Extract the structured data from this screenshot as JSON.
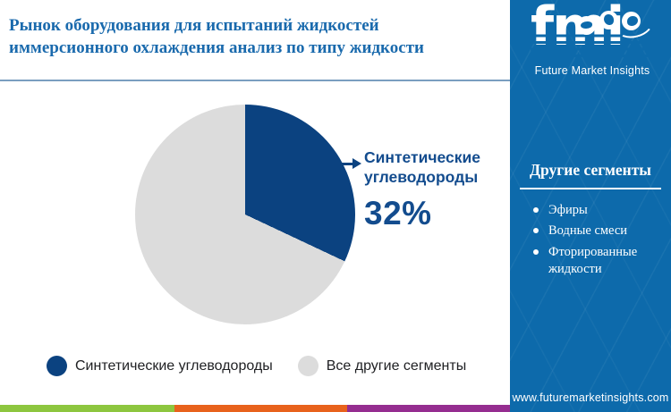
{
  "header": {
    "title": "Рынок оборудования для испытаний жидкостей иммерсионного охлаждения анализ по типу жидкости"
  },
  "logo": {
    "wordmark": "fmi",
    "tagline": "Future Market Insights"
  },
  "sidebar": {
    "other_segments": {
      "heading": "Другие сегменты",
      "items": [
        "Эфиры",
        "Водные смеси",
        "Фторированные жидкости"
      ]
    },
    "website": "www.futuremarketinsights.com"
  },
  "callout": {
    "label": "Синтетические углеводороды",
    "value": "32%"
  },
  "legend": {
    "items": [
      {
        "label": "Синтетические углеводороды",
        "color": "#0B4280"
      },
      {
        "label": "Все другие сегменты",
        "color": "#DCDCDC"
      }
    ]
  },
  "footer": {
    "stripe_colors": [
      "#8DC63F",
      "#E8621C",
      "#952D90"
    ]
  },
  "colors": {
    "sidebar_bg": "#0D6AAB",
    "title_text": "#1A6AAD",
    "accent_navy": "#0B4280",
    "slice_gray": "#DCDCDC",
    "callout_text": "#134C8E",
    "title_rule": "#7A9EC0"
  },
  "chart_data": {
    "type": "pie",
    "title": "Рынок оборудования для испытаний жидкостей иммерсионного охлаждения анализ по типу жидкости",
    "labels": [
      "Синтетические углеводороды",
      "Все другие сегменты"
    ],
    "values": [
      32,
      68
    ],
    "colors": [
      "#0B4280",
      "#DCDCDC"
    ],
    "start_angle_deg": 0,
    "direction": "clockwise",
    "annotation_label": "Синтетические углеводороды",
    "annotation_value": "32%",
    "legend_position": "bottom"
  }
}
